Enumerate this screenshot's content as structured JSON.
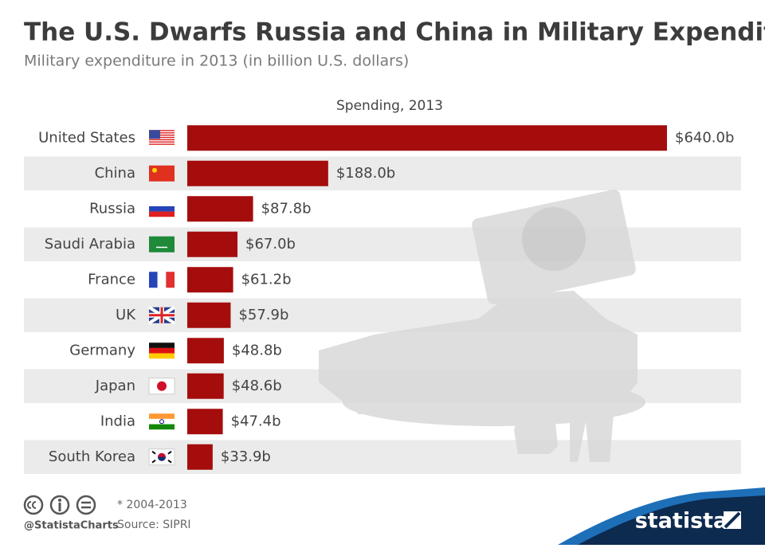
{
  "chart_data": {
    "type": "bar",
    "title": "The U.S. Dwarfs Russia and China in Military Expenditure",
    "subtitle": "Military expenditure in 2013 (in billion U.S. dollars)",
    "categories": [
      "United States",
      "China",
      "Russia",
      "Saudi Arabia",
      "France",
      "UK",
      "Germany",
      "Japan",
      "India",
      "South Korea"
    ],
    "series": [
      {
        "name": "Spending, 2013",
        "color": "#a50d0d",
        "values": [
          640.0,
          188.0,
          87.8,
          67.0,
          61.2,
          57.9,
          48.8,
          48.6,
          47.4,
          33.9
        ],
        "value_labels": [
          "$640.0b",
          "$188.0b",
          "$87.8b",
          "$67.0b",
          "$61.2b",
          "$57.9b",
          "$48.8b",
          "$48.6b",
          "$47.4b",
          "$33.9b"
        ]
      }
    ],
    "notes": [
      "* 2004-2013",
      "Source: SIPRI"
    ],
    "credit": "@StatistaCharts",
    "brand": "statista"
  }
}
